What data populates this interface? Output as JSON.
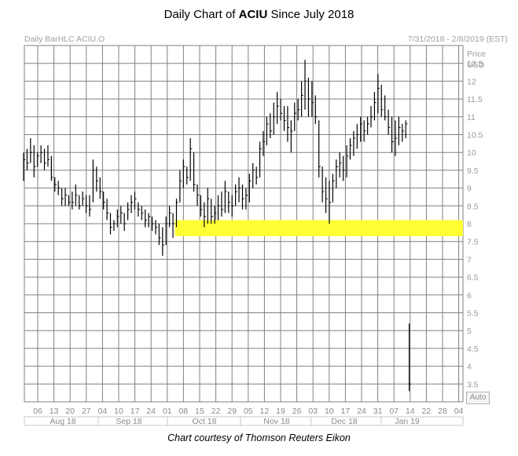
{
  "title": {
    "prefix": "Daily Chart of ",
    "ticker": "ACIU",
    "suffix": " Since July 2018"
  },
  "header": {
    "left": "Daily BarHLC ACIU.O",
    "right": "7/31/2018 - 2/8/2019 (EST)"
  },
  "axis": {
    "y_title_1": "Price",
    "y_title_2": "USD",
    "auto_label": "Auto"
  },
  "credit": "Chart courtesy of Thomson Reuters Eikon",
  "colors": {
    "bars": "#000000",
    "grid": "#808080",
    "highlight": "#ffff33"
  },
  "chart_data": {
    "type": "bar",
    "subtype": "ohlc-hlc",
    "ylim": [
      3,
      13
    ],
    "y_ticks": [
      "3.5",
      "4",
      "4.5",
      "5",
      "5.5",
      "6",
      "6.5",
      "7",
      "7.5",
      "8",
      "8.5",
      "9",
      "9.5",
      "10",
      "10.5",
      "11",
      "11.5",
      "12",
      "12.5"
    ],
    "x_ticks": [
      "06",
      "13",
      "20",
      "27",
      "04",
      "10",
      "17",
      "24",
      "01",
      "08",
      "15",
      "22",
      "29",
      "05",
      "12",
      "19",
      "26",
      "03",
      "10",
      "17",
      "24",
      "31",
      "07",
      "14",
      "22",
      "28",
      "04"
    ],
    "months": [
      "Aug 18",
      "Sep 18",
      "Oct 18",
      "Nov 18",
      "Dec 18",
      "Jan 19"
    ],
    "highlight_band": {
      "low": 7.65,
      "high": 8.1,
      "from_bar": 44
    },
    "bars": [
      {
        "h": 10.0,
        "l": 9.2,
        "c": 9.8
      },
      {
        "h": 10.1,
        "l": 9.5,
        "c": 9.7
      },
      {
        "h": 10.4,
        "l": 9.7,
        "c": 10.0
      },
      {
        "h": 10.2,
        "l": 9.3,
        "c": 9.6
      },
      {
        "h": 10.0,
        "l": 9.6,
        "c": 9.9
      },
      {
        "h": 10.2,
        "l": 9.7,
        "c": 10.0
      },
      {
        "h": 10.1,
        "l": 9.5,
        "c": 9.7
      },
      {
        "h": 10.2,
        "l": 9.6,
        "c": 9.8
      },
      {
        "h": 9.9,
        "l": 9.2,
        "c": 9.3
      },
      {
        "h": 9.3,
        "l": 8.9,
        "c": 9.1
      },
      {
        "h": 9.2,
        "l": 8.8,
        "c": 9.0
      },
      {
        "h": 9.0,
        "l": 8.5,
        "c": 8.7
      },
      {
        "h": 9.0,
        "l": 8.5,
        "c": 8.8
      },
      {
        "h": 8.8,
        "l": 8.5,
        "c": 8.6
      },
      {
        "h": 8.9,
        "l": 8.4,
        "c": 8.6
      },
      {
        "h": 9.1,
        "l": 8.5,
        "c": 8.8
      },
      {
        "h": 8.8,
        "l": 8.4,
        "c": 8.5
      },
      {
        "h": 8.9,
        "l": 8.5,
        "c": 8.7
      },
      {
        "h": 8.8,
        "l": 8.3,
        "c": 8.5
      },
      {
        "h": 8.8,
        "l": 8.2,
        "c": 8.4
      },
      {
        "h": 9.8,
        "l": 8.6,
        "c": 9.5
      },
      {
        "h": 9.6,
        "l": 8.9,
        "c": 9.2
      },
      {
        "h": 9.3,
        "l": 8.7,
        "c": 8.9
      },
      {
        "h": 8.9,
        "l": 8.4,
        "c": 8.6
      },
      {
        "h": 8.7,
        "l": 8.1,
        "c": 8.3
      },
      {
        "h": 8.3,
        "l": 7.7,
        "c": 7.9
      },
      {
        "h": 8.1,
        "l": 7.8,
        "c": 8.0
      },
      {
        "h": 8.4,
        "l": 7.9,
        "c": 8.2
      },
      {
        "h": 8.5,
        "l": 8.0,
        "c": 8.3
      },
      {
        "h": 8.3,
        "l": 7.8,
        "c": 8.0
      },
      {
        "h": 8.6,
        "l": 8.1,
        "c": 8.4
      },
      {
        "h": 8.8,
        "l": 8.3,
        "c": 8.6
      },
      {
        "h": 8.9,
        "l": 8.4,
        "c": 8.7
      },
      {
        "h": 8.6,
        "l": 8.2,
        "c": 8.4
      },
      {
        "h": 8.5,
        "l": 8.1,
        "c": 8.3
      },
      {
        "h": 8.4,
        "l": 7.9,
        "c": 8.1
      },
      {
        "h": 8.3,
        "l": 7.9,
        "c": 8.2
      },
      {
        "h": 8.2,
        "l": 7.8,
        "c": 8.0
      },
      {
        "h": 8.1,
        "l": 7.7,
        "c": 7.9
      },
      {
        "h": 8.0,
        "l": 7.4,
        "c": 7.6
      },
      {
        "h": 7.9,
        "l": 7.1,
        "c": 7.4
      },
      {
        "h": 8.2,
        "l": 7.4,
        "c": 8.0
      },
      {
        "h": 8.5,
        "l": 7.9,
        "c": 8.3
      },
      {
        "h": 8.3,
        "l": 7.6,
        "c": 8.0
      },
      {
        "h": 8.7,
        "l": 7.9,
        "c": 8.6
      },
      {
        "h": 9.5,
        "l": 8.6,
        "c": 9.2
      },
      {
        "h": 9.8,
        "l": 9.0,
        "c": 9.6
      },
      {
        "h": 9.6,
        "l": 9.1,
        "c": 9.3
      },
      {
        "h": 10.4,
        "l": 9.2,
        "c": 10.1
      },
      {
        "h": 10.0,
        "l": 8.9,
        "c": 9.1
      },
      {
        "h": 9.1,
        "l": 8.5,
        "c": 8.8
      },
      {
        "h": 8.8,
        "l": 8.2,
        "c": 8.4
      },
      {
        "h": 8.6,
        "l": 7.9,
        "c": 8.2
      },
      {
        "h": 9.0,
        "l": 8.0,
        "c": 8.7
      },
      {
        "h": 8.7,
        "l": 8.0,
        "c": 8.2
      },
      {
        "h": 8.5,
        "l": 8.0,
        "c": 8.3
      },
      {
        "h": 8.8,
        "l": 8.1,
        "c": 8.5
      },
      {
        "h": 8.9,
        "l": 8.2,
        "c": 8.4
      },
      {
        "h": 9.2,
        "l": 8.3,
        "c": 8.9
      },
      {
        "h": 8.9,
        "l": 8.3,
        "c": 8.6
      },
      {
        "h": 8.8,
        "l": 8.2,
        "c": 8.5
      },
      {
        "h": 9.1,
        "l": 8.5,
        "c": 8.9
      },
      {
        "h": 9.3,
        "l": 8.6,
        "c": 9.0
      },
      {
        "h": 9.1,
        "l": 8.4,
        "c": 8.7
      },
      {
        "h": 9.0,
        "l": 8.4,
        "c": 8.8
      },
      {
        "h": 9.4,
        "l": 8.6,
        "c": 9.2
      },
      {
        "h": 9.7,
        "l": 9.0,
        "c": 9.5
      },
      {
        "h": 9.6,
        "l": 9.1,
        "c": 9.3
      },
      {
        "h": 10.3,
        "l": 9.3,
        "c": 10.1
      },
      {
        "h": 10.6,
        "l": 9.9,
        "c": 10.3
      },
      {
        "h": 11.0,
        "l": 10.2,
        "c": 10.8
      },
      {
        "h": 11.1,
        "l": 10.4,
        "c": 10.6
      },
      {
        "h": 11.4,
        "l": 10.5,
        "c": 11.0
      },
      {
        "h": 11.7,
        "l": 10.8,
        "c": 11.3
      },
      {
        "h": 11.5,
        "l": 10.9,
        "c": 11.1
      },
      {
        "h": 11.3,
        "l": 10.6,
        "c": 10.9
      },
      {
        "h": 11.3,
        "l": 10.3,
        "c": 10.7
      },
      {
        "h": 10.9,
        "l": 10.0,
        "c": 10.6
      },
      {
        "h": 11.4,
        "l": 10.6,
        "c": 11.1
      },
      {
        "h": 11.5,
        "l": 10.9,
        "c": 11.2
      },
      {
        "h": 12.0,
        "l": 11.0,
        "c": 11.6
      },
      {
        "h": 12.6,
        "l": 11.2,
        "c": 12.0
      },
      {
        "h": 12.1,
        "l": 11.0,
        "c": 11.5
      },
      {
        "h": 12.0,
        "l": 11.0,
        "c": 11.4
      },
      {
        "h": 11.6,
        "l": 10.8,
        "c": 11.0
      },
      {
        "h": 10.9,
        "l": 9.3,
        "c": 9.6
      },
      {
        "h": 9.6,
        "l": 8.6,
        "c": 8.9
      },
      {
        "h": 9.3,
        "l": 8.3,
        "c": 8.7
      },
      {
        "h": 9.2,
        "l": 8.0,
        "c": 8.6
      },
      {
        "h": 9.4,
        "l": 8.6,
        "c": 9.2
      },
      {
        "h": 9.8,
        "l": 9.0,
        "c": 9.6
      },
      {
        "h": 10.0,
        "l": 9.3,
        "c": 9.7
      },
      {
        "h": 9.9,
        "l": 9.2,
        "c": 9.5
      },
      {
        "h": 10.2,
        "l": 9.3,
        "c": 9.9
      },
      {
        "h": 10.4,
        "l": 9.8,
        "c": 10.2
      },
      {
        "h": 10.6,
        "l": 9.9,
        "c": 10.4
      },
      {
        "h": 10.8,
        "l": 10.1,
        "c": 10.5
      },
      {
        "h": 11.0,
        "l": 10.3,
        "c": 10.8
      },
      {
        "h": 10.9,
        "l": 10.3,
        "c": 10.6
      },
      {
        "h": 11.0,
        "l": 10.5,
        "c": 10.8
      },
      {
        "h": 11.3,
        "l": 10.7,
        "c": 11.0
      },
      {
        "h": 11.7,
        "l": 10.9,
        "c": 11.4
      },
      {
        "h": 12.2,
        "l": 11.1,
        "c": 11.8
      },
      {
        "h": 11.9,
        "l": 11.0,
        "c": 11.2
      },
      {
        "h": 11.6,
        "l": 10.9,
        "c": 11.0
      },
      {
        "h": 11.2,
        "l": 10.5,
        "c": 10.7
      },
      {
        "h": 11.0,
        "l": 10.0,
        "c": 10.3
      },
      {
        "h": 10.9,
        "l": 9.9,
        "c": 10.4
      },
      {
        "h": 11.0,
        "l": 10.2,
        "c": 10.7
      },
      {
        "h": 10.8,
        "l": 10.3,
        "c": 10.6
      },
      {
        "h": 10.9,
        "l": 10.4,
        "c": 10.8
      },
      {
        "h": 5.2,
        "l": 3.3,
        "c": 3.5
      }
    ]
  }
}
